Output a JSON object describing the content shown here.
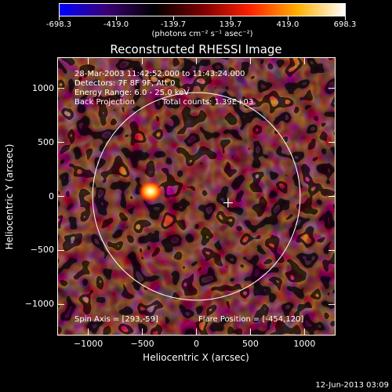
{
  "colorbar": {
    "tick_labels": [
      "-698.3",
      "-419.0",
      "-139.7",
      "139.7",
      "419.0",
      "698.3"
    ],
    "units_label": "(photons cm⁻² s⁻¹ asec⁻²)",
    "colors": [
      "#0000ff",
      "#3a0072",
      "#000000",
      "#7a0000",
      "#ff2000",
      "#ffb000",
      "#ffffff"
    ]
  },
  "title": "Reconstructed RHESSI Image",
  "annotations": {
    "time_range": "28-Mar-2003 11:42:52.000 to 11:43:24.000",
    "detectors": "Detectors: 7F 8F 9F, Att 0",
    "energy_range": "Energy Range: 6.0 - 25.0 keV",
    "method": "Back Projection",
    "total_counts": "Total counts: 1.39E+03",
    "spin_axis": "Spin Axis = [293,-59]",
    "flare_position": "Flare Position = [-454,120]"
  },
  "axes": {
    "xlabel": "Heliocentric X (arcsec)",
    "ylabel": "Heliocentric Y (arcsec)",
    "xlim": [
      -1280,
      1280
    ],
    "ylim": [
      -1280,
      1280
    ],
    "xticks": [
      -1000,
      -500,
      0,
      500,
      1000
    ],
    "yticks": [
      -1000,
      -500,
      0,
      500,
      1000
    ],
    "xtick_labels": [
      "−1000",
      "−500",
      "0",
      "500",
      "1000"
    ],
    "ytick_labels": [
      "−1000",
      "−500",
      "0",
      "500",
      "1000"
    ]
  },
  "solar_limb": {
    "center": [
      0,
      0
    ],
    "radius_arcsec": 960
  },
  "spin_axis_marker": [
    293,
    -59
  ],
  "bright_source": [
    -454,
    120
  ],
  "footer": {
    "date": "12-Jun-2013 03:09"
  }
}
